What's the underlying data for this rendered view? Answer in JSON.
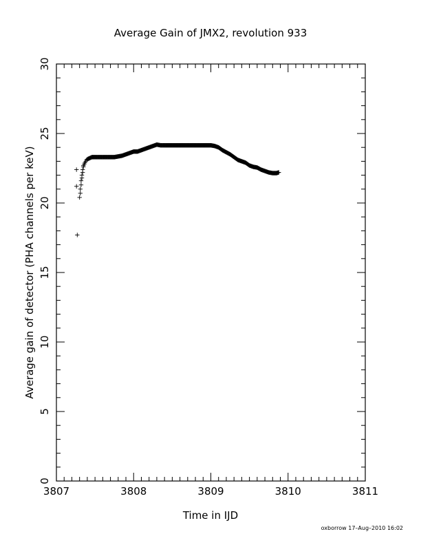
{
  "chart_data": {
    "type": "scatter",
    "title": "Average Gain of JMX2, revolution 933",
    "xlabel": "Time in IJD",
    "ylabel": "Average gain of detector (PHA channels per keV)",
    "xlim": [
      3807,
      3811
    ],
    "ylim": [
      0,
      30
    ],
    "x_ticks": [
      3807,
      3808,
      3809,
      3810,
      3811
    ],
    "y_ticks": [
      0,
      5,
      10,
      15,
      20,
      25,
      30
    ],
    "x_tick_labels": [
      "3807",
      "3808",
      "3809",
      "3810",
      "3811"
    ],
    "y_tick_labels": [
      "0",
      "5",
      "10",
      "15",
      "20",
      "25",
      "30"
    ],
    "grid": false,
    "marker": "plus",
    "series": [
      {
        "x": [
          3807.26,
          3807.26,
          3807.27,
          3807.3,
          3807.31,
          3807.31,
          3807.32,
          3807.32,
          3807.33,
          3807.33,
          3807.34,
          3807.34,
          3807.35,
          3807.35,
          3807.36,
          3807.37,
          3807.38,
          3807.39,
          3807.4,
          3807.42,
          3807.44,
          3807.46,
          3807.5,
          3807.55,
          3807.6,
          3807.65,
          3807.7,
          3807.75,
          3807.8,
          3807.85,
          3807.9,
          3807.95,
          3808.0,
          3808.05,
          3808.1,
          3808.15,
          3808.2,
          3808.25,
          3808.3,
          3808.35,
          3808.4,
          3808.5,
          3808.6,
          3808.7,
          3808.8,
          3808.9,
          3809.0,
          3809.05,
          3809.1,
          3809.15,
          3809.2,
          3809.25,
          3809.3,
          3809.35,
          3809.4,
          3809.45,
          3809.5,
          3809.55,
          3809.6,
          3809.65,
          3809.7,
          3809.75,
          3809.8,
          3809.85,
          3809.88
        ],
        "y": [
          22.4,
          21.2,
          17.7,
          20.4,
          20.7,
          21.0,
          21.3,
          21.6,
          21.8,
          22.0,
          22.2,
          22.4,
          22.6,
          22.7,
          22.8,
          22.9,
          23.0,
          23.1,
          23.15,
          23.2,
          23.25,
          23.3,
          23.3,
          23.3,
          23.3,
          23.3,
          23.3,
          23.3,
          23.35,
          23.4,
          23.5,
          23.6,
          23.7,
          23.7,
          23.8,
          23.9,
          24.0,
          24.1,
          24.2,
          24.15,
          24.15,
          24.15,
          24.15,
          24.15,
          24.15,
          24.15,
          24.15,
          24.1,
          24.0,
          23.8,
          23.65,
          23.5,
          23.3,
          23.1,
          23.0,
          22.9,
          22.7,
          22.6,
          22.55,
          22.4,
          22.3,
          22.2,
          22.15,
          22.15,
          22.2
        ]
      }
    ]
  },
  "footer": {
    "credit": "oxborrow 17–Aug–2010 16:02"
  }
}
